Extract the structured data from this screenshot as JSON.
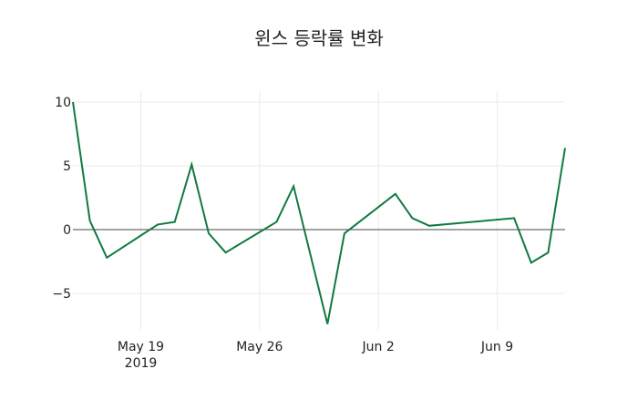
{
  "chart_data": {
    "type": "line",
    "title": "윈스 등락률 변화",
    "xlabel": "",
    "ylabel": "",
    "ylim": [
      -7.9,
      10.3
    ],
    "xlim": [
      "2019-05-15",
      "2019-06-13"
    ],
    "grid": true,
    "legend": null,
    "line_color": "#117a3f",
    "x": [
      "2019-05-15",
      "2019-05-16",
      "2019-05-17",
      "2019-05-20",
      "2019-05-21",
      "2019-05-22",
      "2019-05-23",
      "2019-05-24",
      "2019-05-27",
      "2019-05-28",
      "2019-05-30",
      "2019-05-31",
      "2019-06-03",
      "2019-06-04",
      "2019-06-05",
      "2019-06-10",
      "2019-06-11",
      "2019-06-12",
      "2019-06-13"
    ],
    "series": [
      {
        "name": "등락률",
        "values": [
          10.0,
          0.7,
          -2.2,
          0.4,
          0.6,
          5.1,
          -0.3,
          -1.8,
          0.6,
          3.4,
          -7.4,
          -0.3,
          2.8,
          0.9,
          0.3,
          0.9,
          -2.6,
          -1.8,
          6.4
        ]
      }
    ],
    "y_ticks": [
      {
        "value": 10,
        "label": "10"
      },
      {
        "value": 5,
        "label": "5"
      },
      {
        "value": 0,
        "label": "0"
      },
      {
        "value": -5,
        "label": "−5"
      }
    ],
    "x_ticks": [
      {
        "date": "2019-05-19",
        "label": "May 19",
        "sublabel": "2019"
      },
      {
        "date": "2019-05-26",
        "label": "May 26",
        "sublabel": ""
      },
      {
        "date": "2019-06-02",
        "label": "Jun 2",
        "sublabel": ""
      },
      {
        "date": "2019-06-09",
        "label": "Jun 9",
        "sublabel": ""
      }
    ]
  }
}
